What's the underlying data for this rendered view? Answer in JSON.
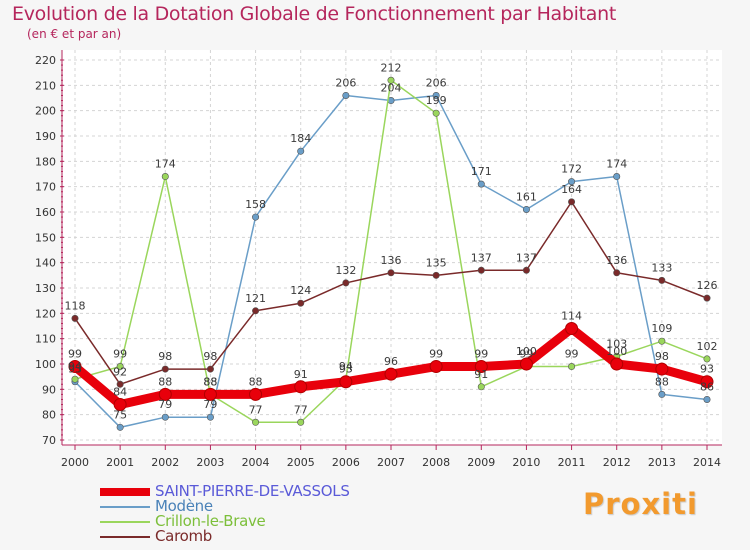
{
  "header": {
    "title": "Evolution de la Dotation Globale de Fonctionnement par Habitant",
    "subtitle": "(en € et par an)"
  },
  "brand": {
    "logo_text": "Proxiti"
  },
  "chart_data": {
    "type": "line",
    "title": "Evolution de la Dotation Globale de Fonctionnement par Habitant",
    "subtitle": "(en € et par an)",
    "xlabel": "",
    "ylabel": "",
    "ylim": [
      70,
      220
    ],
    "ytick_step": 10,
    "grid": true,
    "legend_position": "bottom-left",
    "categories": [
      "2000",
      "2001",
      "2002",
      "2003",
      "2004",
      "2005",
      "2006",
      "2007",
      "2008",
      "2009",
      "2010",
      "2011",
      "2012",
      "2013",
      "2014"
    ],
    "series": [
      {
        "name": "SAINT-PIERRE-DE-VASSOLS",
        "color": "#e8000b",
        "label_color": "#e8000b",
        "values": [
          99,
          84,
          88,
          88,
          88,
          91,
          93,
          96,
          99,
          99,
          100,
          114,
          100,
          98,
          93
        ]
      },
      {
        "name": "Modène",
        "color": "#6a9ec8",
        "label_color": "#4a82b8",
        "values": [
          93,
          75,
          79,
          79,
          158,
          184,
          206,
          204,
          206,
          171,
          161,
          172,
          174,
          88,
          86
        ]
      },
      {
        "name": "Crillon-le-Brave",
        "color": "#9ad65c",
        "label_color": "#7cbf3a",
        "values": [
          94,
          99,
          174,
          88,
          77,
          77,
          94,
          212,
          199,
          91,
          99,
          99,
          103,
          109,
          102
        ]
      },
      {
        "name": "Caromb",
        "color": "#7a2a2a",
        "label_color": "#7a2a2a",
        "values": [
          118,
          92,
          98,
          98,
          121,
          124,
          132,
          136,
          135,
          137,
          137,
          164,
          136,
          133,
          126
        ]
      }
    ]
  }
}
